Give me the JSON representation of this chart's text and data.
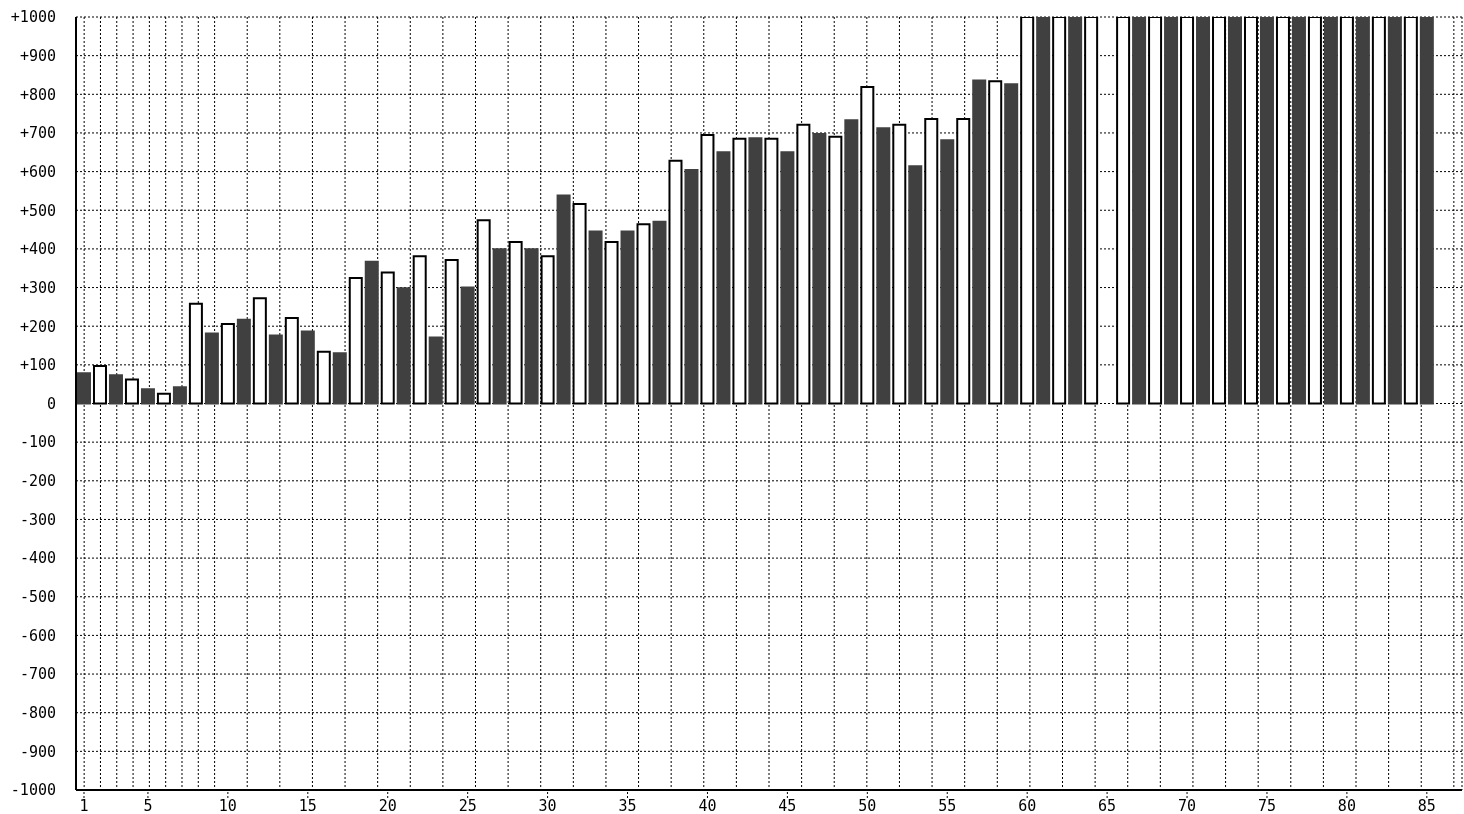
{
  "chart_data": {
    "type": "bar",
    "x": [
      1,
      2,
      3,
      4,
      5,
      6,
      7,
      8,
      9,
      10,
      11,
      12,
      13,
      14,
      15,
      16,
      17,
      18,
      19,
      20,
      21,
      22,
      23,
      24,
      25,
      26,
      27,
      28,
      29,
      30,
      31,
      32,
      33,
      34,
      35,
      36,
      37,
      38,
      39,
      40,
      41,
      42,
      43,
      44,
      45,
      46,
      47,
      48,
      49,
      50,
      51,
      52,
      53,
      54,
      55,
      56,
      57,
      58,
      59,
      60,
      61,
      62,
      63,
      64,
      65,
      66,
      67,
      68,
      69,
      70,
      71,
      72,
      73,
      74,
      75,
      76,
      77,
      78,
      79,
      80,
      81,
      82,
      83,
      84,
      85
    ],
    "values": [
      78,
      97,
      73,
      62,
      37,
      25,
      42,
      258,
      181,
      206,
      217,
      272,
      176,
      221,
      186,
      134,
      130,
      325,
      367,
      339,
      298,
      381,
      171,
      371,
      300,
      474,
      399,
      418,
      399,
      381,
      538,
      516,
      445,
      418,
      445,
      464,
      470,
      628,
      604,
      695,
      650,
      685,
      686,
      685,
      650,
      721,
      697,
      690,
      733,
      819,
      712,
      721,
      614,
      736,
      681,
      736,
      836,
      834,
      826,
      1000,
      1000,
      1000,
      1000,
      1000,
      0,
      1000,
      1000,
      1000,
      1000,
      1000,
      1000,
      1000,
      1000,
      1000,
      1000,
      1000,
      1000,
      1000,
      1000,
      1000,
      1000,
      1000,
      1000,
      1000,
      1000
    ],
    "colors": [
      "#404040",
      "#ffffff",
      "#404040",
      "#ffffff",
      "#404040",
      "#ffffff",
      "#404040",
      "#ffffff",
      "#404040",
      "#ffffff",
      "#404040",
      "#ffffff",
      "#404040",
      "#ffffff",
      "#404040",
      "#ffffff",
      "#404040",
      "#ffffff",
      "#404040",
      "#ffffff",
      "#404040",
      "#ffffff",
      "#404040",
      "#ffffff",
      "#404040",
      "#ffffff",
      "#404040",
      "#ffffff",
      "#404040",
      "#ffffff",
      "#404040",
      "#ffffff",
      "#404040",
      "#ffffff",
      "#404040",
      "#ffffff",
      "#404040",
      "#ffffff",
      "#404040",
      "#ffffff",
      "#404040",
      "#ffffff",
      "#404040",
      "#ffffff",
      "#404040",
      "#ffffff",
      "#404040",
      "#ffffff",
      "#404040",
      "#ffffff",
      "#404040",
      "#ffffff",
      "#404040",
      "#ffffff",
      "#404040",
      "#ffffff",
      "#404040",
      "#ffffff",
      "#404040",
      "#ffffff",
      "#404040",
      "#ffffff",
      "#404040",
      "#ffffff",
      "#ffffff",
      "#ffffff",
      "#404040",
      "#ffffff",
      "#404040",
      "#ffffff",
      "#404040",
      "#ffffff",
      "#404040",
      "#ffffff",
      "#404040",
      "#ffffff",
      "#404040",
      "#ffffff",
      "#404040",
      "#ffffff",
      "#404040",
      "#ffffff",
      "#404040",
      "#ffffff",
      "#404040"
    ],
    "xlim": [
      0.5,
      87.2
    ],
    "xticks": [
      1,
      5,
      10,
      15,
      20,
      25,
      30,
      35,
      40,
      45,
      50,
      55,
      60,
      65,
      70,
      75,
      80,
      85
    ],
    "ylim": [
      -1000,
      1000
    ],
    "yticks": [
      {
        "value": -1000,
        "label": "-1000"
      },
      {
        "value": -900,
        "label": "-900"
      },
      {
        "value": -800,
        "label": "-800"
      },
      {
        "value": -700,
        "label": "-700"
      },
      {
        "value": -600,
        "label": "-600"
      },
      {
        "value": -500,
        "label": "-500"
      },
      {
        "value": -400,
        "label": "-400"
      },
      {
        "value": -300,
        "label": "-300"
      },
      {
        "value": -200,
        "label": "-200"
      },
      {
        "value": -100,
        "label": "-100"
      },
      0,
      {
        "value": 100,
        "label": "+100"
      },
      {
        "value": 200,
        "label": "+200"
      },
      {
        "value": 300,
        "label": "+300"
      },
      {
        "value": 400,
        "label": "+400"
      },
      {
        "value": 500,
        "label": "+500"
      },
      {
        "value": 600,
        "label": "+600"
      },
      {
        "value": 700,
        "label": "+700"
      },
      {
        "value": 800,
        "label": "+800"
      },
      {
        "value": 900,
        "label": "+900"
      },
      {
        "value": 1000,
        "label": "+1000"
      }
    ],
    "grid": true,
    "legend": false
  }
}
